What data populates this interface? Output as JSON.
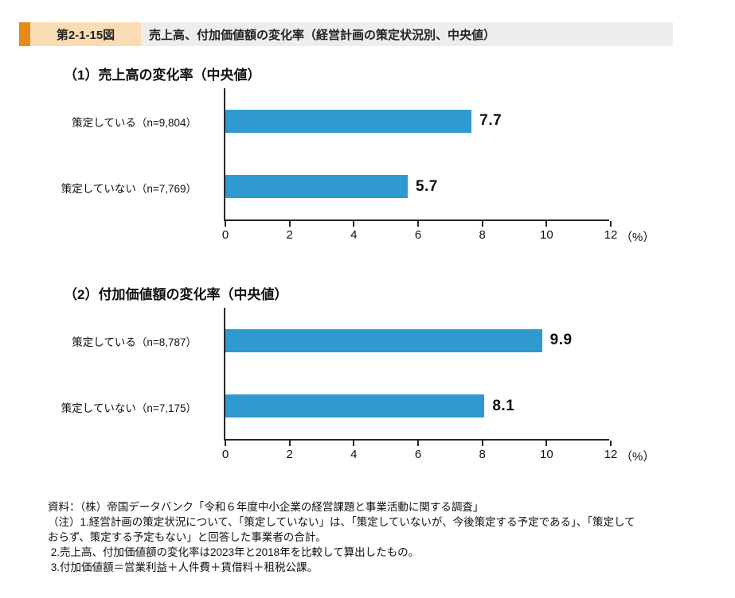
{
  "header": {
    "figure_label": "第2-1-15図",
    "title": "売上高、付加価値額の変化率（経営計画の策定状況別、中央値）",
    "accent_color": "#E8891D",
    "label_bg": "#FADCB4",
    "title_bg": "#EDEDED"
  },
  "chart_data": [
    {
      "type": "bar",
      "orientation": "horizontal",
      "title": "（1）売上高の変化率（中央値）",
      "categories": [
        "策定している（n=9,804）",
        "策定していない（n=7,769）"
      ],
      "values": [
        7.7,
        5.7
      ],
      "xlim": [
        0,
        12
      ],
      "xticks": [
        0,
        2,
        4,
        6,
        8,
        10,
        12
      ],
      "unit_label": "（%）",
      "bar_color": "#2E9AD0",
      "grid": false,
      "legend": "none"
    },
    {
      "type": "bar",
      "orientation": "horizontal",
      "title": "（2）付加価値額の変化率（中央値）",
      "categories": [
        "策定している（n=8,787）",
        "策定していない（n=7,175）"
      ],
      "values": [
        9.9,
        8.1
      ],
      "xlim": [
        0,
        12
      ],
      "xticks": [
        0,
        2,
        4,
        6,
        8,
        10,
        12
      ],
      "unit_label": "（%）",
      "bar_color": "#2E9AD0",
      "grid": false,
      "legend": "none"
    }
  ],
  "footnotes": {
    "lines": [
      "資料：（株）帝国データバンク「令和６年度中小企業の経営課題と事業活動に関する調査」",
      "（注）1.経営計画の策定状況について、「策定していない」は、「策定していないが、今後策定する予定である」、「策定して",
      "おらず、策定する予定もない」と回答した事業者の合計。",
      " 2.売上高、付加価値額の変化率は2023年と2018年を比較して算出したもの。",
      " 3.付加価値額＝営業利益＋人件費＋賃借料＋租税公課。"
    ]
  }
}
